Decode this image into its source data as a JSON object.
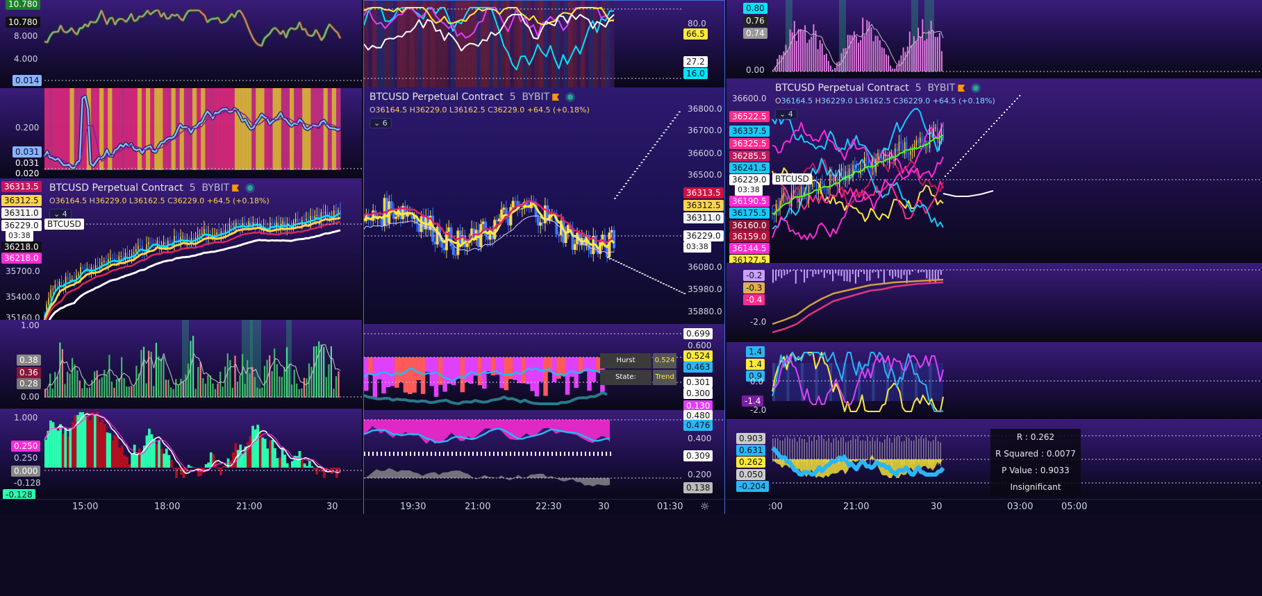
{
  "colors": {
    "bg": "#0d0a22",
    "pane_top": "#3a1c7a",
    "up": "#ffd54a",
    "down": "#3d7bff",
    "red": "#ff1744",
    "cyan": "#00e5ff",
    "magenta": "#ff2bd6",
    "green": "#4cff7a"
  },
  "legend": {
    "symbol": "BTCUSD Perpetual Contract",
    "interval": "5",
    "exchange": "BYBIT",
    "flag_icon": "flag-icon",
    "status_icon": "live-dot-icon"
  },
  "ohlc": {
    "o_label": "O",
    "o": "36164.5",
    "h_label": "H",
    "h": "36229.0",
    "l_label": "L",
    "l": "36162.5",
    "c_label": "C",
    "c": "36229.0",
    "change": "+64.5 (+0.18%)"
  },
  "left": {
    "p1": {
      "ticks": [
        "10.780",
        "8.000",
        "4.000"
      ],
      "labels": [
        "10.780",
        "0.014"
      ]
    },
    "p2": {
      "ticks": [
        "0.200",
        "0.031",
        "0.020"
      ],
      "labels": [
        "0.031"
      ]
    },
    "main": {
      "collapse": "4",
      "symbol_tag": "BTCUSD",
      "countdown": "03:38",
      "labels": [
        "36313.5",
        "36312.5",
        "36311.0",
        "36229.0",
        "36218.0",
        "36218.0"
      ],
      "ticks": [
        "35700.0",
        "35400.0",
        "35160.0"
      ]
    },
    "p4": {
      "ticks": [
        "1.00",
        "0.00"
      ],
      "labels": [
        "0.38",
        "0.36",
        "0.28"
      ]
    },
    "p5": {
      "ticks": [
        "1.000",
        "0.250",
        "-0.128"
      ],
      "labels": [
        "0.250",
        "0.000",
        "-0.128"
      ]
    },
    "time": [
      "15:00",
      "18:00",
      "21:00",
      "30"
    ]
  },
  "middle": {
    "p1": {
      "ticks": [
        "80.0"
      ],
      "labels": [
        "66.5",
        "27.2",
        "16.0"
      ]
    },
    "main": {
      "collapse": "6",
      "countdown": "03:38",
      "ticks": [
        "36800.0",
        "36700.0",
        "36600.0",
        "36500.0",
        "36080.0",
        "35980.0",
        "35880.0"
      ],
      "labels": [
        "36313.5",
        "36312.5",
        "36311.0",
        "36229.0"
      ]
    },
    "p3": {
      "ticks": [
        "0.600"
      ],
      "labels": [
        "0.699",
        "0.524",
        "0.463",
        "0.301",
        "0.300",
        "0.130"
      ],
      "hurst_label": "Hurst Exponent:",
      "hurst_value": "0.524",
      "state_label": "State:",
      "state_value": "Trend"
    },
    "p4": {
      "ticks": [
        "0.400",
        "0.200"
      ],
      "labels": [
        "0.480",
        "0.476",
        "0.309",
        "0.138"
      ]
    },
    "time": [
      "19:30",
      "21:00",
      "22:30",
      "30",
      "01:30"
    ],
    "settings_icon": "sun-gear-icon"
  },
  "right": {
    "p1": {
      "ticks": [
        "0.00"
      ],
      "labels": [
        "0.80",
        "0.76",
        "0.74"
      ]
    },
    "main": {
      "collapse": "4",
      "symbol_tag": "BTCUSD",
      "countdown": "03:38",
      "ticks": [
        "36600.0"
      ],
      "labels": [
        "36522.5",
        "36337.5",
        "36325.5",
        "36285.5",
        "36241.5",
        "36229.0",
        "36190.5",
        "36175.5",
        "36160.0",
        "36159.0",
        "36144.5",
        "36127.5"
      ]
    },
    "p3": {
      "ticks": [
        "-2.0"
      ],
      "labels": [
        "-0.2",
        "-0.3",
        "-0.4"
      ]
    },
    "p4": {
      "ticks": [
        "0.0",
        "-2.0"
      ],
      "labels": [
        "1.4",
        "1.4",
        "0.9",
        "-1.4"
      ]
    },
    "p5": {
      "labels": [
        "0.903",
        "0.631",
        "0.262",
        "0.050",
        "-0.204"
      ],
      "corr": {
        "r": "R : 0.262",
        "r2": "R Squared : 0.0077",
        "p": "P Value : 0.9033",
        "verdict": "Insignificant Correlation"
      }
    },
    "time": [
      ":00",
      "21:00",
      "30",
      "03:00",
      "05:00"
    ]
  }
}
